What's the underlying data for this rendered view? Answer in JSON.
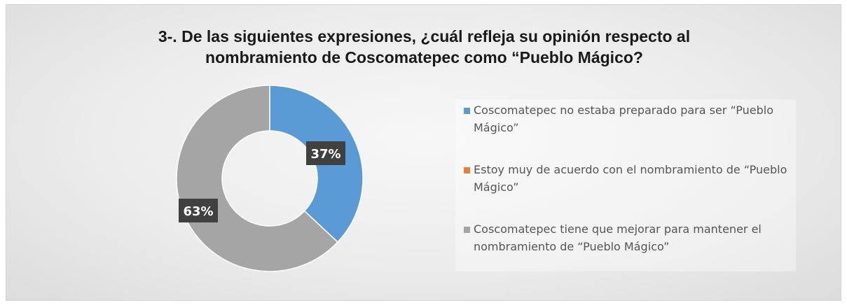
{
  "title_lines": [
    "3-. De las siguientes expresiones, ¿cuál refleja su opinión respecto al",
    "nombramiento de Coscomatepec como “Pueblo Mágico?"
  ],
  "chart_data": {
    "type": "pie",
    "style": "donut",
    "categories": [
      "Coscomatepec no estaba preparado para ser “Pueblo Mágico”",
      "Estoy muy de acuerdo con el nombramiento de “Pueblo Mágico”",
      "Coscomatepec tiene que mejorar para mantener el nombramiento de “Pueblo Mágico”"
    ],
    "values": [
      37,
      0,
      63
    ],
    "data_labels": [
      "37%",
      "",
      "63%"
    ],
    "colors": [
      "#5b9bd5",
      "#ed7d31",
      "#a5a5a5"
    ],
    "legend_position": "right"
  },
  "legend": {
    "items": [
      {
        "label": "Coscomatepec no estaba preparado para ser “Pueblo Mágico”",
        "color": "#5b9bd5"
      },
      {
        "label": "Estoy muy de acuerdo con el nombramiento de “Pueblo Mágico”",
        "color": "#ed7d31"
      },
      {
        "label": "Coscomatepec tiene que mejorar para mantener el nombramiento de “Pueblo Mágico”",
        "color": "#a5a5a5"
      }
    ]
  }
}
